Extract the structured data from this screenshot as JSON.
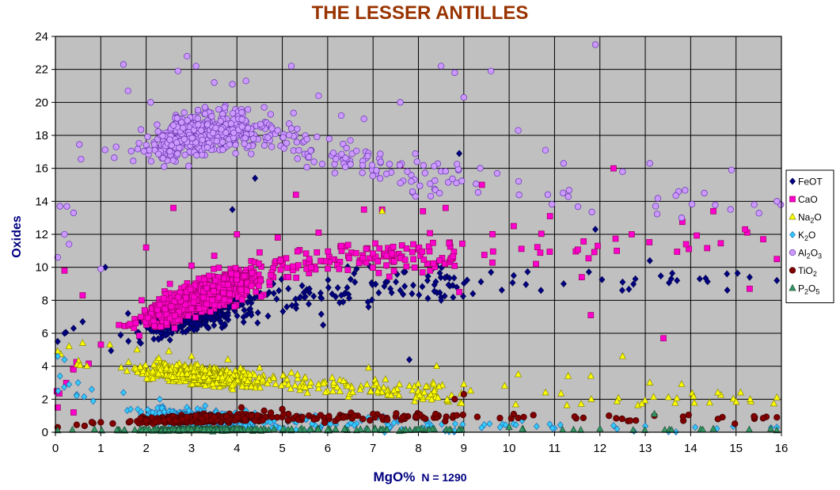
{
  "title": "THE LESSER ANTILLES",
  "chart_data": {
    "type": "scatter",
    "title": "THE LESSER ANTILLES",
    "xlabel": "MgO%",
    "ylabel": "Oxides",
    "annotation": "N = 1290",
    "xlim": [
      0,
      16
    ],
    "ylim": [
      0,
      24
    ],
    "x_ticks": [
      0,
      1,
      2,
      3,
      4,
      5,
      6,
      7,
      8,
      9,
      10,
      11,
      12,
      13,
      14,
      15,
      16
    ],
    "y_ticks": [
      0,
      2,
      4,
      6,
      8,
      10,
      12,
      14,
      16,
      18,
      20,
      22,
      24
    ],
    "grid": true,
    "legend_position": "right",
    "plot_background": "#c0c0c0",
    "series": [
      {
        "name": "FeOT",
        "legend_main": "FeOT",
        "legend_sub": "",
        "legend_post": "",
        "marker": "diamond",
        "color": "#000080",
        "stroke": "#000050",
        "trend": [
          [
            0,
            5
          ],
          [
            1,
            5.5
          ],
          [
            2,
            6.3
          ],
          [
            3,
            7
          ],
          [
            4,
            7.8
          ],
          [
            5,
            8.3
          ],
          [
            6,
            8.6
          ],
          [
            7,
            8.8
          ],
          [
            8,
            9
          ],
          [
            10,
            9
          ],
          [
            12,
            9
          ],
          [
            14,
            9.2
          ],
          [
            16,
            9.3
          ]
        ],
        "points": [
          [
            0.05,
            5.5
          ],
          [
            0.2,
            6.0
          ],
          [
            0.4,
            6.3
          ],
          [
            0.6,
            6.7
          ],
          [
            1.1,
            10.0
          ],
          [
            1.6,
            7.2
          ],
          [
            2.1,
            6.7
          ],
          [
            2.4,
            7.4
          ],
          [
            2.8,
            7.6
          ],
          [
            3.1,
            7.0
          ],
          [
            3.4,
            7.8
          ],
          [
            3.7,
            8.1
          ],
          [
            3.9,
            13.5
          ],
          [
            4.2,
            8.5
          ],
          [
            4.4,
            15.4
          ],
          [
            4.8,
            9.0
          ],
          [
            5.1,
            7.6
          ],
          [
            5.4,
            8.2
          ],
          [
            5.9,
            6.5
          ],
          [
            6.3,
            8.3
          ],
          [
            6.6,
            9.1
          ],
          [
            6.9,
            7.6
          ],
          [
            7.3,
            10.1
          ],
          [
            7.6,
            8.6
          ],
          [
            7.8,
            4.4
          ],
          [
            8.2,
            9.2
          ],
          [
            8.5,
            8.0
          ],
          [
            8.9,
            16.9
          ],
          [
            9.2,
            8.4
          ],
          [
            9.6,
            9.7
          ],
          [
            10.1,
            9.5
          ],
          [
            10.7,
            8.6
          ],
          [
            11.2,
            9.0
          ],
          [
            11.9,
            12.3
          ],
          [
            12.5,
            9.1
          ],
          [
            13.1,
            10.4
          ],
          [
            13.7,
            9.2
          ],
          [
            14.2,
            9.3
          ],
          [
            14.8,
            9.6
          ],
          [
            15.3,
            9.4
          ],
          [
            15.9,
            9.2
          ]
        ],
        "n_generated": 460
      },
      {
        "name": "CaO",
        "legend_main": "CaO",
        "legend_sub": "",
        "legend_post": "",
        "marker": "square",
        "color": "#ff00cc",
        "stroke": "#990066",
        "trend": [
          [
            0,
            2
          ],
          [
            1,
            5.5
          ],
          [
            2,
            7
          ],
          [
            3,
            8
          ],
          [
            4,
            9
          ],
          [
            5,
            10
          ],
          [
            6,
            10.5
          ],
          [
            8,
            10.8
          ],
          [
            10,
            11
          ],
          [
            12,
            11.3
          ],
          [
            14,
            11.5
          ],
          [
            16,
            11.5
          ]
        ],
        "points": [
          [
            0.05,
            1.5
          ],
          [
            0.2,
            9.8
          ],
          [
            0.4,
            1.2
          ],
          [
            0.6,
            8.3
          ],
          [
            1.4,
            6.5
          ],
          [
            1.9,
            8.0
          ],
          [
            2.0,
            11.2
          ],
          [
            2.6,
            13.6
          ],
          [
            3.0,
            10.1
          ],
          [
            3.5,
            10.7
          ],
          [
            4.0,
            12.0
          ],
          [
            4.5,
            10.9
          ],
          [
            4.9,
            11.8
          ],
          [
            5.3,
            14.4
          ],
          [
            5.8,
            12.1
          ],
          [
            6.3,
            11.3
          ],
          [
            6.8,
            13.5
          ],
          [
            7.2,
            13.5
          ],
          [
            7.6,
            16.2
          ],
          [
            8.1,
            13.4
          ],
          [
            8.6,
            13.6
          ],
          [
            8.9,
            8.5
          ],
          [
            9.4,
            15.0
          ],
          [
            10.1,
            12.5
          ],
          [
            10.9,
            13.1
          ],
          [
            11.6,
            9.4
          ],
          [
            11.8,
            7.1
          ],
          [
            12.3,
            16.0
          ],
          [
            12.7,
            12.0
          ],
          [
            13.4,
            5.7
          ],
          [
            13.9,
            11.4
          ],
          [
            14.5,
            13.4
          ],
          [
            15.2,
            12.3
          ],
          [
            15.3,
            8.7
          ],
          [
            15.9,
            10.5
          ]
        ],
        "n_generated": 760
      },
      {
        "name": "Na2O",
        "legend_main": "Na",
        "legend_sub": "2",
        "legend_post": "O",
        "marker": "triangle",
        "color": "#ffff00",
        "stroke": "#888800",
        "trend": [
          [
            0,
            4.5
          ],
          [
            1,
            4.2
          ],
          [
            2,
            3.8
          ],
          [
            3,
            3.5
          ],
          [
            4,
            3.2
          ],
          [
            5,
            3.0
          ],
          [
            6,
            2.8
          ],
          [
            7,
            2.6
          ],
          [
            8,
            2.4
          ],
          [
            10,
            2.2
          ],
          [
            12,
            2.0
          ],
          [
            14,
            2.0
          ],
          [
            16,
            2.0
          ]
        ],
        "points": [
          [
            0.05,
            4.9
          ],
          [
            0.3,
            5.2
          ],
          [
            0.6,
            5.4
          ],
          [
            1.2,
            5.3
          ],
          [
            1.8,
            5.0
          ],
          [
            2.5,
            4.9
          ],
          [
            3.0,
            4.6
          ],
          [
            3.8,
            4.4
          ],
          [
            4.5,
            3.9
          ],
          [
            5.2,
            3.6
          ],
          [
            6.1,
            3.3
          ],
          [
            6.9,
            3.9
          ],
          [
            7.2,
            13.4
          ],
          [
            7.8,
            2.8
          ],
          [
            8.4,
            4.0
          ],
          [
            9.0,
            2.9
          ],
          [
            9.9,
            2.8
          ],
          [
            10.2,
            3.5
          ],
          [
            10.8,
            2.4
          ],
          [
            11.3,
            3.4
          ],
          [
            11.8,
            3.4
          ],
          [
            12.5,
            4.6
          ],
          [
            13.1,
            3.0
          ],
          [
            13.8,
            2.9
          ],
          [
            14.6,
            2.4
          ],
          [
            15.1,
            2.4
          ],
          [
            15.9,
            2.1
          ]
        ],
        "n_generated": 600
      },
      {
        "name": "K2O",
        "legend_main": "K",
        "legend_sub": "2",
        "legend_post": "O",
        "marker": "diamond",
        "color": "#33ccff",
        "stroke": "#2266aa",
        "trend": [
          [
            0,
            2.8
          ],
          [
            0.5,
            2.2
          ],
          [
            1,
            1.8
          ],
          [
            2,
            1.2
          ],
          [
            3,
            0.9
          ],
          [
            4,
            0.7
          ],
          [
            5,
            0.6
          ],
          [
            7,
            0.5
          ],
          [
            9,
            0.4
          ],
          [
            12,
            0.3
          ],
          [
            16,
            0.25
          ]
        ],
        "points": [
          [
            0.05,
            4.6
          ],
          [
            0.1,
            3.4
          ],
          [
            0.2,
            4.4
          ],
          [
            0.3,
            2.9
          ],
          [
            0.5,
            3.0
          ],
          [
            0.8,
            2.6
          ],
          [
            1.5,
            2.4
          ],
          [
            2.3,
            2.0
          ],
          [
            3.3,
            1.6
          ],
          [
            4.2,
            1.3
          ],
          [
            5.5,
            0.8
          ],
          [
            7.1,
            0.9
          ],
          [
            8.2,
            0.4
          ],
          [
            9.8,
            0.3
          ],
          [
            12.3,
            0.4
          ],
          [
            14.1,
            0.3
          ],
          [
            15.9,
            0.3
          ]
        ],
        "n_generated": 400
      },
      {
        "name": "Al2O3",
        "legend_main": "Al",
        "legend_sub": "2",
        "legend_post": "O",
        "legend_sub2": "3",
        "marker": "circle",
        "color": "#cc99ff",
        "stroke": "#6633aa",
        "trend": [
          [
            0,
            12.5
          ],
          [
            0.5,
            16
          ],
          [
            1,
            17
          ],
          [
            2,
            17.5
          ],
          [
            3,
            18
          ],
          [
            4,
            18.5
          ],
          [
            5,
            18
          ],
          [
            6,
            17
          ],
          [
            7,
            16.2
          ],
          [
            8,
            15.5
          ],
          [
            10,
            15
          ],
          [
            12,
            14.5
          ],
          [
            14,
            14
          ],
          [
            16,
            13.5
          ]
        ],
        "points": [
          [
            0.05,
            10.6
          ],
          [
            0.1,
            13.7
          ],
          [
            0.2,
            12.0
          ],
          [
            0.3,
            11.4
          ],
          [
            0.4,
            13.3
          ],
          [
            1.0,
            9.9
          ],
          [
            1.5,
            22.3
          ],
          [
            1.6,
            20.7
          ],
          [
            2.1,
            20.0
          ],
          [
            2.7,
            21.9
          ],
          [
            2.9,
            22.8
          ],
          [
            3.1,
            22.2
          ],
          [
            3.5,
            21.2
          ],
          [
            3.9,
            21.1
          ],
          [
            4.2,
            21.3
          ],
          [
            4.6,
            19.7
          ],
          [
            5.2,
            22.2
          ],
          [
            5.8,
            20.4
          ],
          [
            6.3,
            19.2
          ],
          [
            6.8,
            19.0
          ],
          [
            7.6,
            20.0
          ],
          [
            8.5,
            22.2
          ],
          [
            8.8,
            21.8
          ],
          [
            9.0,
            20.3
          ],
          [
            9.6,
            21.9
          ],
          [
            10.2,
            18.3
          ],
          [
            10.8,
            17.1
          ],
          [
            11.2,
            16.3
          ],
          [
            11.9,
            23.5
          ],
          [
            12.5,
            15.8
          ],
          [
            13.1,
            16.3
          ],
          [
            13.8,
            13.0
          ],
          [
            14.3,
            14.5
          ],
          [
            14.9,
            15.9
          ],
          [
            15.4,
            13.8
          ],
          [
            15.9,
            14.0
          ]
        ],
        "n_generated": 560
      },
      {
        "name": "TiO2",
        "legend_main": "TiO",
        "legend_sub": "2",
        "legend_post": "",
        "marker": "circle",
        "color": "#800000",
        "stroke": "#400000",
        "trend": [
          [
            0,
            0.4
          ],
          [
            1,
            0.55
          ],
          [
            2,
            0.7
          ],
          [
            3,
            0.8
          ],
          [
            4,
            0.9
          ],
          [
            5,
            0.9
          ],
          [
            6,
            0.85
          ],
          [
            8,
            0.95
          ],
          [
            10,
            0.9
          ],
          [
            12,
            0.85
          ],
          [
            14,
            0.85
          ],
          [
            16,
            0.85
          ]
        ],
        "points": [
          [
            0.05,
            0.3
          ],
          [
            1.0,
            0.6
          ],
          [
            2.0,
            0.7
          ],
          [
            3.5,
            0.9
          ],
          [
            4.1,
            1.5
          ],
          [
            4.6,
            1.3
          ],
          [
            5.0,
            1.4
          ],
          [
            7.0,
            1.1
          ],
          [
            8.8,
            2.0
          ],
          [
            9.0,
            2.3
          ],
          [
            10.1,
            1.1
          ],
          [
            12.2,
            1.0
          ],
          [
            13.2,
            1.0
          ],
          [
            14.6,
            0.8
          ],
          [
            15.9,
            0.9
          ]
        ],
        "n_generated": 460
      },
      {
        "name": "P2O5",
        "legend_main": "P",
        "legend_sub": "2",
        "legend_post": "O",
        "legend_sub2": "5",
        "marker": "triangle",
        "color": "#339966",
        "stroke": "#1a4d33",
        "trend": [
          [
            0,
            0.1
          ],
          [
            4,
            0.15
          ],
          [
            8,
            0.15
          ],
          [
            12,
            0.15
          ],
          [
            16,
            0.15
          ]
        ],
        "points": [
          [
            0.05,
            0.1
          ],
          [
            2.0,
            0.15
          ],
          [
            4.0,
            0.2
          ],
          [
            6.0,
            0.15
          ],
          [
            8.0,
            0.2
          ],
          [
            10.0,
            0.3
          ],
          [
            12.0,
            0.2
          ],
          [
            13.2,
            1.1
          ],
          [
            14.5,
            0.2
          ],
          [
            15.9,
            0.1
          ]
        ],
        "n_generated": 320
      }
    ]
  }
}
